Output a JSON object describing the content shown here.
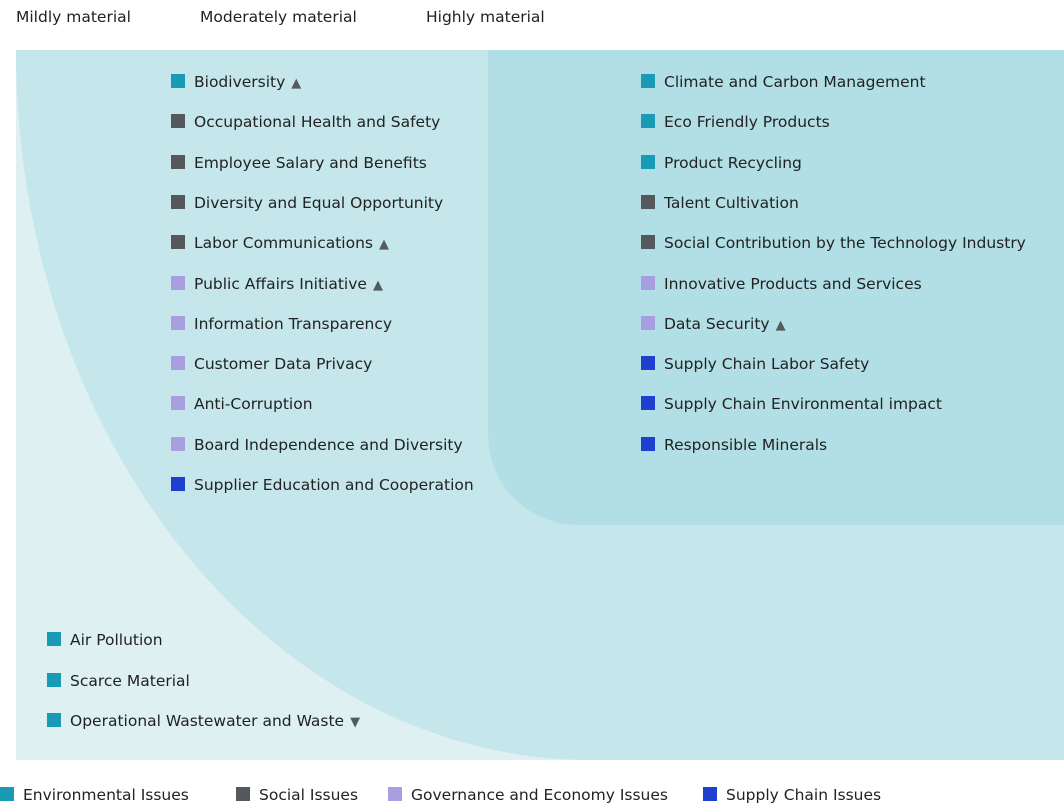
{
  "header": {
    "levels": [
      "Mildly material",
      "Moderately material",
      "Highly material"
    ]
  },
  "zones": {
    "moderate": {
      "items": [
        {
          "label": "Biodiversity",
          "color": "#1a9bb5",
          "trend": "▲"
        },
        {
          "label": "Occupational Health and Safety",
          "color": "#55595e"
        },
        {
          "label": "Employee Salary and Benefits",
          "color": "#55595e"
        },
        {
          "label": "Diversity and Equal Opportunity",
          "color": "#55595e"
        },
        {
          "label": "Labor Communications",
          "color": "#55595e",
          "trend": "▲"
        },
        {
          "label": "Public Affairs Initiative",
          "color": "#a99ee0",
          "trend": "▲"
        },
        {
          "label": "Information Transparency",
          "color": "#a99ee0"
        },
        {
          "label": "Customer Data Privacy",
          "color": "#a99ee0"
        },
        {
          "label": "Anti-Corruption",
          "color": "#a99ee0"
        },
        {
          "label": "Board Independence and Diversity",
          "color": "#a99ee0"
        },
        {
          "label": "Supplier Education and Cooperation",
          "color": "#1f3fd0"
        }
      ]
    },
    "high": {
      "items": [
        {
          "label": "Climate and Carbon Management",
          "color": "#1a9bb5"
        },
        {
          "label": "Eco Friendly Products",
          "color": "#1a9bb5"
        },
        {
          "label": "Product Recycling",
          "color": "#1a9bb5"
        },
        {
          "label": "Talent Cultivation",
          "color": "#55595e"
        },
        {
          "label": "Social Contribution by the Technology Industry",
          "color": "#55595e"
        },
        {
          "label": "Innovative Products and Services",
          "color": "#a99ee0"
        },
        {
          "label": "Data Security",
          "color": "#a99ee0",
          "trend": "▲"
        },
        {
          "label": "Supply Chain Labor Safety",
          "color": "#1f3fd0"
        },
        {
          "label": "Supply Chain Environmental impact",
          "color": "#1f3fd0"
        },
        {
          "label": "Responsible Minerals",
          "color": "#1f3fd0"
        }
      ]
    },
    "mild": {
      "items": [
        {
          "label": "Air Pollution",
          "color": "#1a9bb5"
        },
        {
          "label": "Scarce Material",
          "color": "#1a9bb5"
        },
        {
          "label": "Operational Wastewater and Waste",
          "color": "#1a9bb5",
          "trend": "▼"
        }
      ]
    }
  },
  "legend": [
    {
      "label": "Environmental Issues",
      "color": "#1a9bb5"
    },
    {
      "label": "Social Issues",
      "color": "#55595e"
    },
    {
      "label": "Governance and Economy Issues",
      "color": "#a99ee0"
    },
    {
      "label": "Supply Chain Issues",
      "color": "#1f3fd0"
    }
  ]
}
